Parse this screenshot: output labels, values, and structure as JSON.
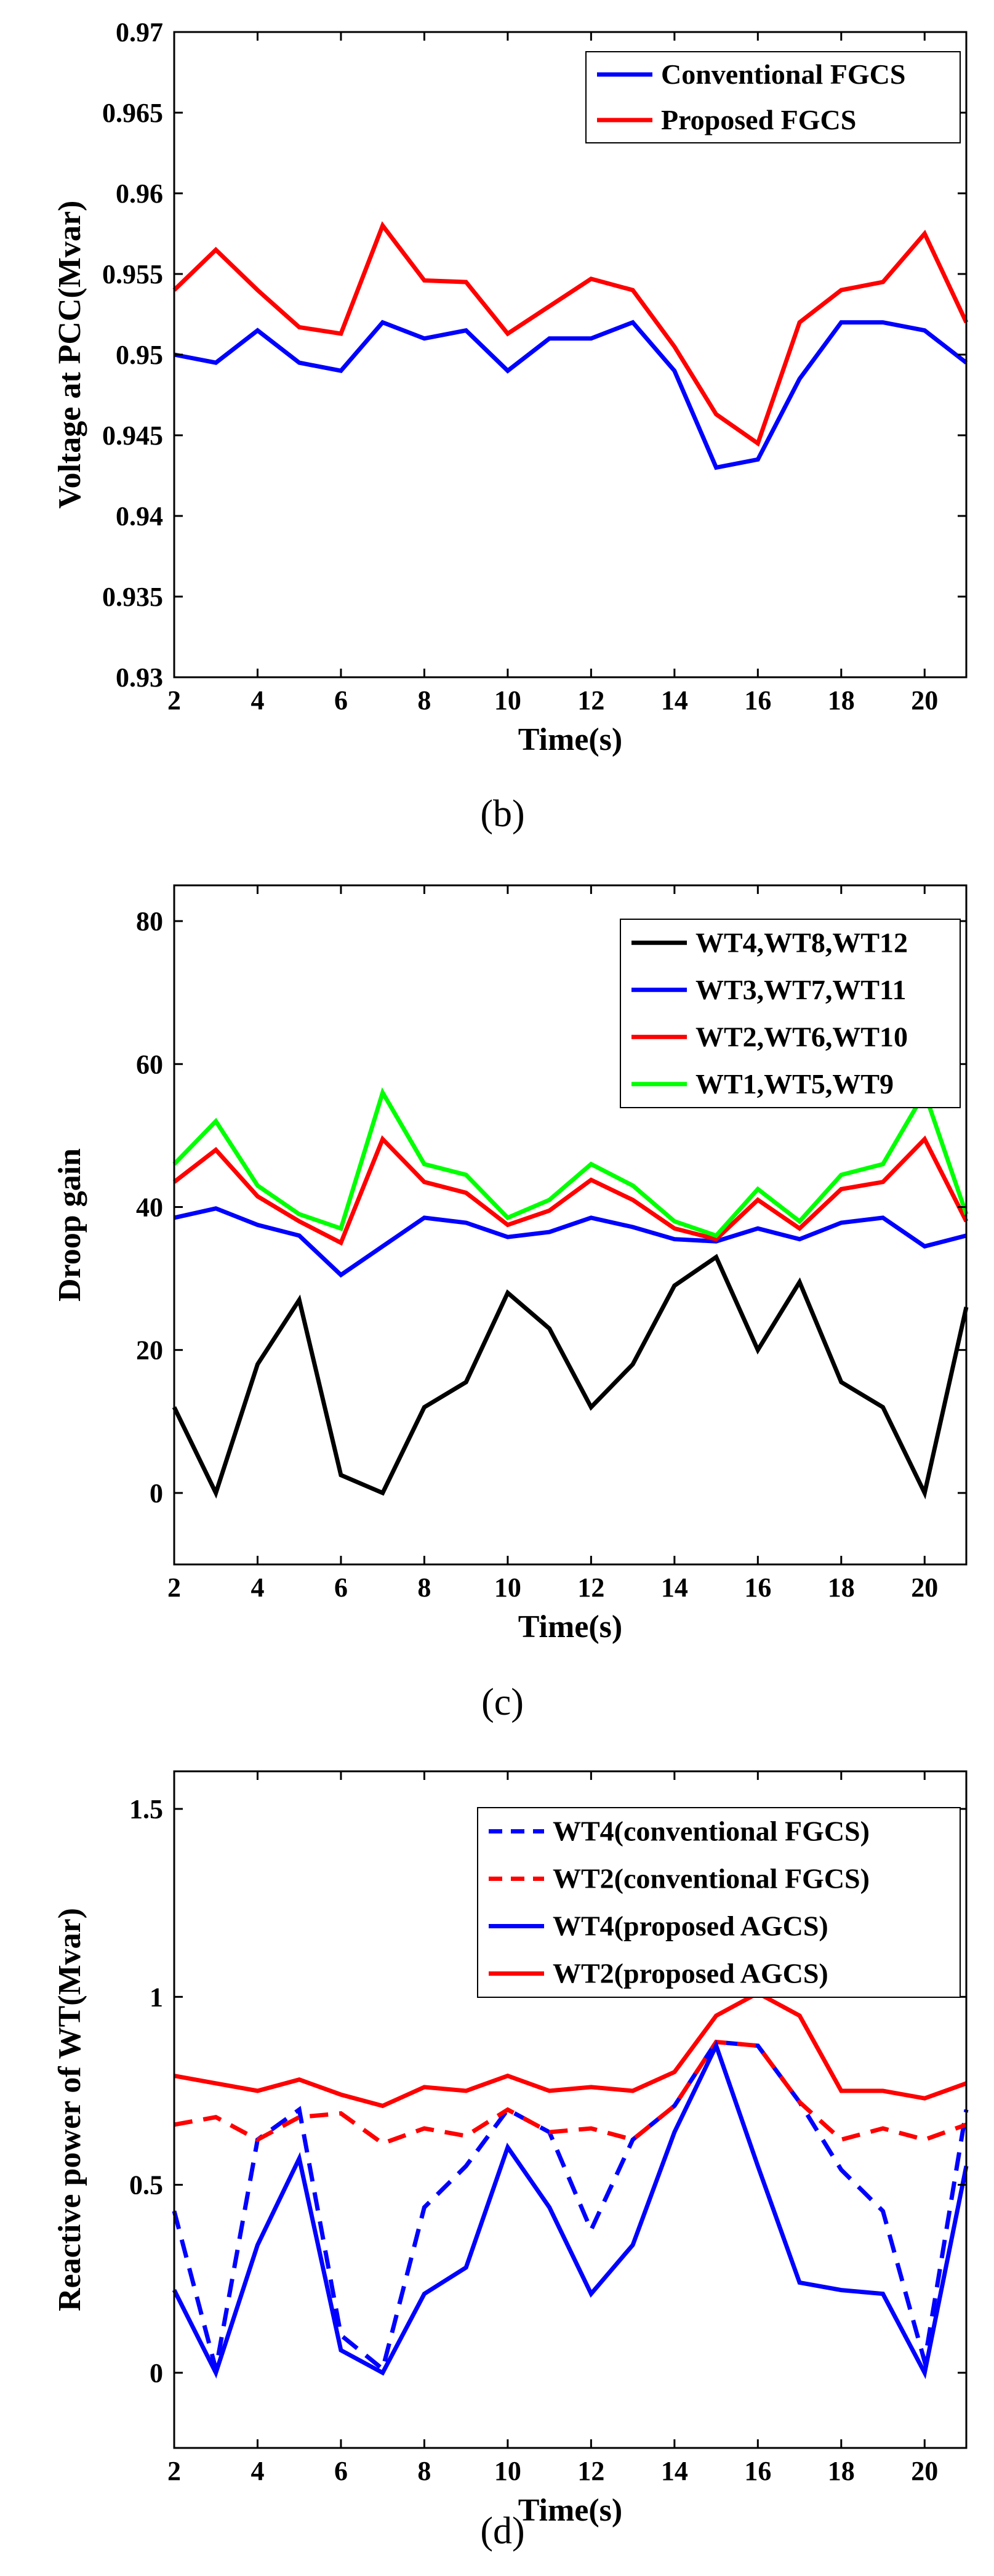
{
  "chart_data": [
    {
      "type": "line",
      "panel_label": "(b)",
      "xlabel": "Time(s)",
      "ylabel": "Voltage at PCC(Mvar)",
      "xlim": [
        2,
        21
      ],
      "ylim": [
        0.93,
        0.97
      ],
      "xticks": [
        2,
        4,
        6,
        8,
        10,
        12,
        14,
        16,
        18,
        20
      ],
      "yticks": [
        0.93,
        0.935,
        0.94,
        0.945,
        0.95,
        0.955,
        0.96,
        0.965,
        0.97
      ],
      "ytick_labels": [
        "0.93",
        "0.935",
        "0.94",
        "0.945",
        "0.95",
        "0.955",
        "0.96",
        "0.965",
        "0.97"
      ],
      "legend_position": "top-right",
      "x": [
        2,
        3,
        4,
        5,
        6,
        7,
        8,
        9,
        10,
        11,
        12,
        13,
        14,
        15,
        16,
        17,
        18,
        19,
        20,
        21
      ],
      "series": [
        {
          "name": "Conventional FGCS",
          "color": "#0000ff",
          "dash": "solid",
          "values": [
            0.95,
            0.9495,
            0.9515,
            0.9495,
            0.949,
            0.952,
            0.951,
            0.9515,
            0.949,
            0.951,
            0.951,
            0.952,
            0.949,
            0.943,
            0.9435,
            0.9485,
            0.952,
            0.952,
            0.9515,
            0.9495
          ]
        },
        {
          "name": "Proposed FGCS",
          "color": "#ff0000",
          "dash": "solid",
          "values": [
            0.954,
            0.9565,
            0.954,
            0.9517,
            0.9513,
            0.958,
            0.9546,
            0.9545,
            0.9513,
            0.953,
            0.9547,
            0.954,
            0.9505,
            0.9463,
            0.9445,
            0.952,
            0.954,
            0.9545,
            0.9575,
            0.952
          ]
        }
      ]
    },
    {
      "type": "line",
      "panel_label": "(c)",
      "xlabel": "Time(s)",
      "ylabel": "Droop gain",
      "xlim": [
        2,
        21
      ],
      "ylim": [
        -10,
        85
      ],
      "xticks": [
        2,
        4,
        6,
        8,
        10,
        12,
        14,
        16,
        18,
        20
      ],
      "yticks": [
        0,
        20,
        40,
        60,
        80
      ],
      "ytick_labels": [
        "0",
        "20",
        "40",
        "60",
        "80"
      ],
      "legend_position": "top-right",
      "x": [
        2,
        3,
        4,
        5,
        6,
        7,
        8,
        9,
        10,
        11,
        12,
        13,
        14,
        15,
        16,
        17,
        18,
        19,
        20,
        21
      ],
      "series": [
        {
          "name": "WT4,WT8,WT12",
          "color": "#000000",
          "dash": "solid",
          "values": [
            12,
            0,
            18,
            27,
            2.5,
            0,
            12,
            15.5,
            28,
            23,
            12,
            18,
            29,
            33,
            20,
            29.5,
            15.5,
            12,
            0,
            26
          ]
        },
        {
          "name": "WT3,WT7,WT11",
          "color": "#0000ff",
          "dash": "solid",
          "values": [
            38.5,
            39.8,
            37.5,
            36,
            30.5,
            34.5,
            38.5,
            37.8,
            35.8,
            36.5,
            38.5,
            37.2,
            35.5,
            35.2,
            37,
            35.5,
            37.8,
            38.5,
            34.5,
            36
          ]
        },
        {
          "name": "WT2,WT6,WT10",
          "color": "#ff0000",
          "dash": "solid",
          "values": [
            43.5,
            48,
            41.5,
            38,
            35,
            49.5,
            43.5,
            42,
            37.5,
            39.5,
            43.8,
            41,
            37,
            35.5,
            41,
            37,
            42.5,
            43.5,
            49.5,
            38
          ]
        },
        {
          "name": "WT1,WT5,WT9",
          "color": "#00ff00",
          "dash": "solid",
          "values": [
            46,
            52,
            43,
            39,
            37,
            56,
            46,
            44.5,
            38.5,
            41,
            46,
            43,
            38,
            36,
            42.5,
            38,
            44.5,
            46,
            56,
            39
          ]
        }
      ]
    },
    {
      "type": "line",
      "panel_label": "(d)",
      "xlabel": "Time(s)",
      "ylabel": "Reactive power of WT(Mvar)",
      "xlim": [
        2,
        21
      ],
      "ylim": [
        -0.2,
        1.6
      ],
      "xticks": [
        2,
        4,
        6,
        8,
        10,
        12,
        14,
        16,
        18,
        20
      ],
      "yticks": [
        0,
        0.5,
        1,
        1.5
      ],
      "ytick_labels": [
        "0",
        "0.5",
        "1",
        "1.5"
      ],
      "legend_position": "top-right",
      "x": [
        2,
        3,
        4,
        5,
        6,
        7,
        8,
        9,
        10,
        11,
        12,
        13,
        14,
        15,
        16,
        17,
        18,
        19,
        20,
        21
      ],
      "series": [
        {
          "name": "WT4(conventional FGCS)",
          "color": "#0000ff",
          "dash": "dashed",
          "values": [
            0.43,
            0.01,
            0.62,
            0.7,
            0.1,
            0.01,
            0.44,
            0.55,
            0.7,
            0.64,
            0.38,
            0.62,
            0.71,
            0.88,
            0.87,
            0.72,
            0.54,
            0.43,
            0.03,
            0.7
          ]
        },
        {
          "name": "WT2(conventional FGCS)",
          "color": "#ff0000",
          "dash": "dashed",
          "values": [
            0.66,
            0.68,
            0.62,
            0.68,
            0.69,
            0.61,
            0.65,
            0.63,
            0.7,
            0.64,
            0.65,
            0.62,
            0.71,
            0.88,
            0.87,
            0.72,
            0.62,
            0.65,
            0.62,
            0.66
          ]
        },
        {
          "name": "WT4(proposed AGCS)",
          "color": "#0000ff",
          "dash": "solid",
          "values": [
            0.22,
            0.0,
            0.34,
            0.57,
            0.06,
            0.0,
            0.21,
            0.28,
            0.6,
            0.44,
            0.21,
            0.34,
            0.64,
            0.87,
            0.55,
            0.24,
            0.22,
            0.21,
            0.0,
            0.55
          ]
        },
        {
          "name": "WT2(proposed AGCS)",
          "color": "#ff0000",
          "dash": "solid",
          "values": [
            0.79,
            0.77,
            0.75,
            0.78,
            0.74,
            0.71,
            0.76,
            0.75,
            0.79,
            0.75,
            0.76,
            0.75,
            0.8,
            0.95,
            1.01,
            0.95,
            0.75,
            0.75,
            0.73,
            0.77
          ]
        }
      ]
    }
  ]
}
